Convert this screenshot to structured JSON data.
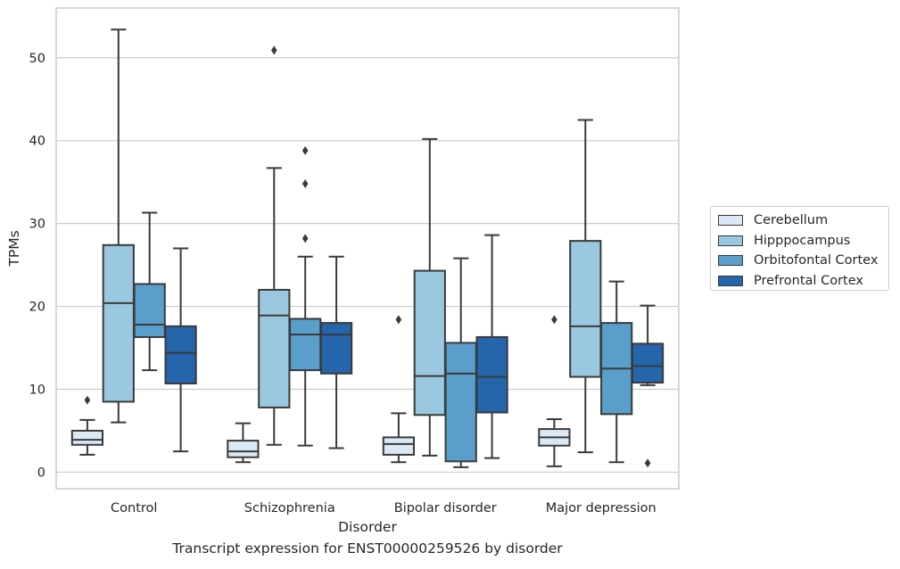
{
  "caption": "Transcript expression for ENST00000259526 by disorder",
  "colors": {
    "Cerebellum": "#dbe9f6",
    "Hipppocampus": "#9ac8e0",
    "Orbitofontal Cortex": "#5a9ecc",
    "Prefrontal Cortex": "#2565ab",
    "line": "#3a3a3a",
    "grid": "#cccccc"
  },
  "chart_data": {
    "type": "box",
    "title": "",
    "xlabel": "Disorder",
    "ylabel": "TPMs",
    "ylim": [
      -2,
      56
    ],
    "yticks": [
      0,
      10,
      20,
      30,
      40,
      50
    ],
    "grid": "horizontal",
    "legend_position": "right",
    "categories": [
      "Control",
      "Schizophrenia",
      "Bipolar disorder",
      "Major depression"
    ],
    "series": [
      {
        "name": "Cerebellum",
        "boxes": [
          {
            "whislo": 2.1,
            "q1": 3.3,
            "med": 3.9,
            "q3": 5.0,
            "whishi": 6.3,
            "fliers": [
              8.7
            ]
          },
          {
            "whislo": 1.2,
            "q1": 1.8,
            "med": 2.5,
            "q3": 3.8,
            "whishi": 5.9,
            "fliers": []
          },
          {
            "whislo": 1.2,
            "q1": 2.1,
            "med": 3.4,
            "q3": 4.2,
            "whishi": 7.1,
            "fliers": [
              18.4
            ]
          },
          {
            "whislo": 0.7,
            "q1": 3.2,
            "med": 4.2,
            "q3": 5.2,
            "whishi": 6.4,
            "fliers": [
              18.4
            ]
          }
        ]
      },
      {
        "name": "Hipppocampus",
        "boxes": [
          {
            "whislo": 6.0,
            "q1": 8.5,
            "med": 20.4,
            "q3": 27.4,
            "whishi": 53.4,
            "fliers": []
          },
          {
            "whislo": 3.3,
            "q1": 7.8,
            "med": 18.9,
            "q3": 22.0,
            "whishi": 36.7,
            "fliers": [
              50.9
            ]
          },
          {
            "whislo": 2.0,
            "q1": 6.9,
            "med": 11.6,
            "q3": 24.3,
            "whishi": 40.2,
            "fliers": []
          },
          {
            "whislo": 2.4,
            "q1": 11.5,
            "med": 17.6,
            "q3": 27.9,
            "whishi": 42.5,
            "fliers": []
          }
        ]
      },
      {
        "name": "Orbitofontal Cortex",
        "boxes": [
          {
            "whislo": 12.3,
            "q1": 16.3,
            "med": 17.8,
            "q3": 22.7,
            "whishi": 31.3,
            "fliers": []
          },
          {
            "whislo": 3.2,
            "q1": 12.3,
            "med": 16.6,
            "q3": 18.5,
            "whishi": 26.0,
            "fliers": [
              28.2,
              34.8,
              38.8
            ]
          },
          {
            "whislo": 0.6,
            "q1": 1.3,
            "med": 11.9,
            "q3": 15.6,
            "whishi": 25.8,
            "fliers": []
          },
          {
            "whislo": 1.2,
            "q1": 7.0,
            "med": 12.5,
            "q3": 18.0,
            "whishi": 23.0,
            "fliers": []
          }
        ]
      },
      {
        "name": "Prefrontal Cortex",
        "boxes": [
          {
            "whislo": 2.5,
            "q1": 10.7,
            "med": 14.4,
            "q3": 17.6,
            "whishi": 27.0,
            "fliers": []
          },
          {
            "whislo": 2.9,
            "q1": 11.9,
            "med": 16.6,
            "q3": 18.0,
            "whishi": 26.0,
            "fliers": []
          },
          {
            "whislo": 1.7,
            "q1": 7.2,
            "med": 11.5,
            "q3": 16.3,
            "whishi": 28.6,
            "fliers": []
          },
          {
            "whislo": 10.5,
            "q1": 10.8,
            "med": 12.8,
            "q3": 15.5,
            "whishi": 20.1,
            "fliers": [
              1.1
            ]
          }
        ]
      }
    ]
  }
}
